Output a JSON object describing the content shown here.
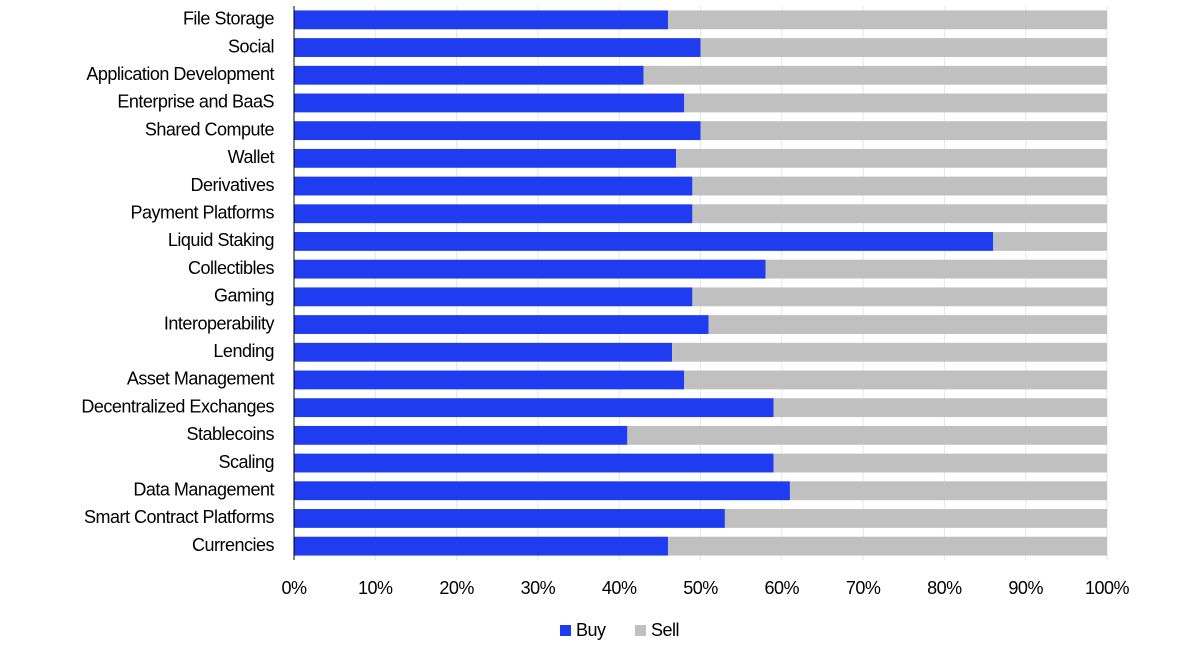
{
  "chart_data": {
    "type": "stacked-bar-horizontal",
    "categories": [
      "File Storage",
      "Social",
      "Application Development",
      "Enterprise and BaaS",
      "Shared Compute",
      "Wallet",
      "Derivatives",
      "Payment Platforms",
      "Liquid Staking",
      "Collectibles",
      "Gaming",
      "Interoperability",
      "Lending",
      "Asset Management",
      "Decentralized Exchanges",
      "Stablecoins",
      "Scaling",
      "Data Management",
      "Smart Contract Platforms",
      "Currencies"
    ],
    "series": [
      {
        "name": "Buy",
        "color": "#1f3cf0",
        "values": [
          46,
          50,
          43,
          48,
          50,
          47,
          49,
          49,
          86,
          58,
          49,
          51,
          46.5,
          48,
          59,
          41,
          59,
          61,
          53,
          46
        ]
      },
      {
        "name": "Sell",
        "color": "#c0c0c0",
        "values": [
          54,
          50,
          57,
          52,
          50,
          53,
          51,
          51,
          14,
          42,
          51,
          49,
          53.5,
          52,
          41,
          59,
          41,
          39,
          47,
          54
        ]
      }
    ],
    "xlim": [
      0,
      100
    ],
    "xticks": [
      {
        "value": 0,
        "label": "0%"
      },
      {
        "value": 10,
        "label": "10%"
      },
      {
        "value": 20,
        "label": "20%"
      },
      {
        "value": 30,
        "label": "30%"
      },
      {
        "value": 40,
        "label": "40%"
      },
      {
        "value": 50,
        "label": "50%"
      },
      {
        "value": 60,
        "label": "60%"
      },
      {
        "value": 70,
        "label": "70%"
      },
      {
        "value": 80,
        "label": "80%"
      },
      {
        "value": 90,
        "label": "90%"
      },
      {
        "value": 100,
        "label": "100%"
      }
    ],
    "grid": true,
    "legend": "bottom"
  }
}
